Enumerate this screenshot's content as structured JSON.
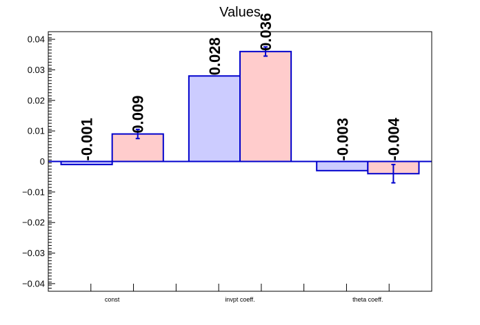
{
  "chart_data": {
    "type": "bar",
    "title": "Values",
    "categories": [
      "const",
      "invpt coeff.",
      "theta coeff."
    ],
    "series": [
      {
        "values": [
          -0.001,
          0.028,
          -0.003
        ],
        "errors": [
          0,
          0,
          0
        ],
        "fill": "#ccccff",
        "stroke": "#0000cc"
      },
      {
        "values": [
          0.009,
          0.036,
          -0.004
        ],
        "errors": [
          0.0015,
          0.0015,
          0.003
        ],
        "fill": "#ffcccc",
        "stroke": "#0000cc"
      }
    ],
    "value_labels": [
      [
        "-0.001",
        "0.028",
        "-0.003"
      ],
      [
        "0.009",
        "0.036",
        "-0.004"
      ]
    ],
    "ylim": [
      -0.0425,
      0.0425
    ],
    "yticks": [
      -0.04,
      -0.03,
      -0.02,
      -0.01,
      0,
      0.01,
      0.02,
      0.03,
      0.04
    ],
    "ytick_labels": [
      "−0.04",
      "−0.03",
      "−0.02",
      "−0.01",
      "0",
      "0.01",
      "0.02",
      "0.03",
      "0.04"
    ],
    "grid": false,
    "legend": "none",
    "zero_line_color": "#0000cc"
  }
}
